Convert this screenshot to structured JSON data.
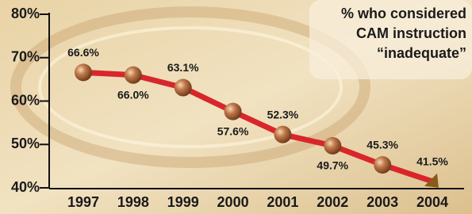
{
  "chart_data": {
    "type": "line",
    "title": [
      "% who considered",
      "CAM instruction",
      "“inadequate”"
    ],
    "categories": [
      "1997",
      "1998",
      "1999",
      "2000",
      "2001",
      "2002",
      "2003",
      "2004"
    ],
    "values": [
      66.6,
      66.0,
      63.1,
      57.6,
      52.3,
      49.7,
      45.3,
      41.5
    ],
    "value_labels": [
      "66.6%",
      "66.0%",
      "63.1%",
      "57.6%",
      "52.3%",
      "49.7%",
      "45.3%",
      "41.5%"
    ],
    "color": "#d8262b",
    "ylim": [
      40,
      80
    ],
    "yticks": [
      {
        "value": 40,
        "label": "40%"
      },
      {
        "value": 50,
        "label": "50%"
      },
      {
        "value": 60,
        "label": "60%"
      },
      {
        "value": 70,
        "label": "70%"
      },
      {
        "value": 80,
        "label": "80%"
      }
    ]
  }
}
